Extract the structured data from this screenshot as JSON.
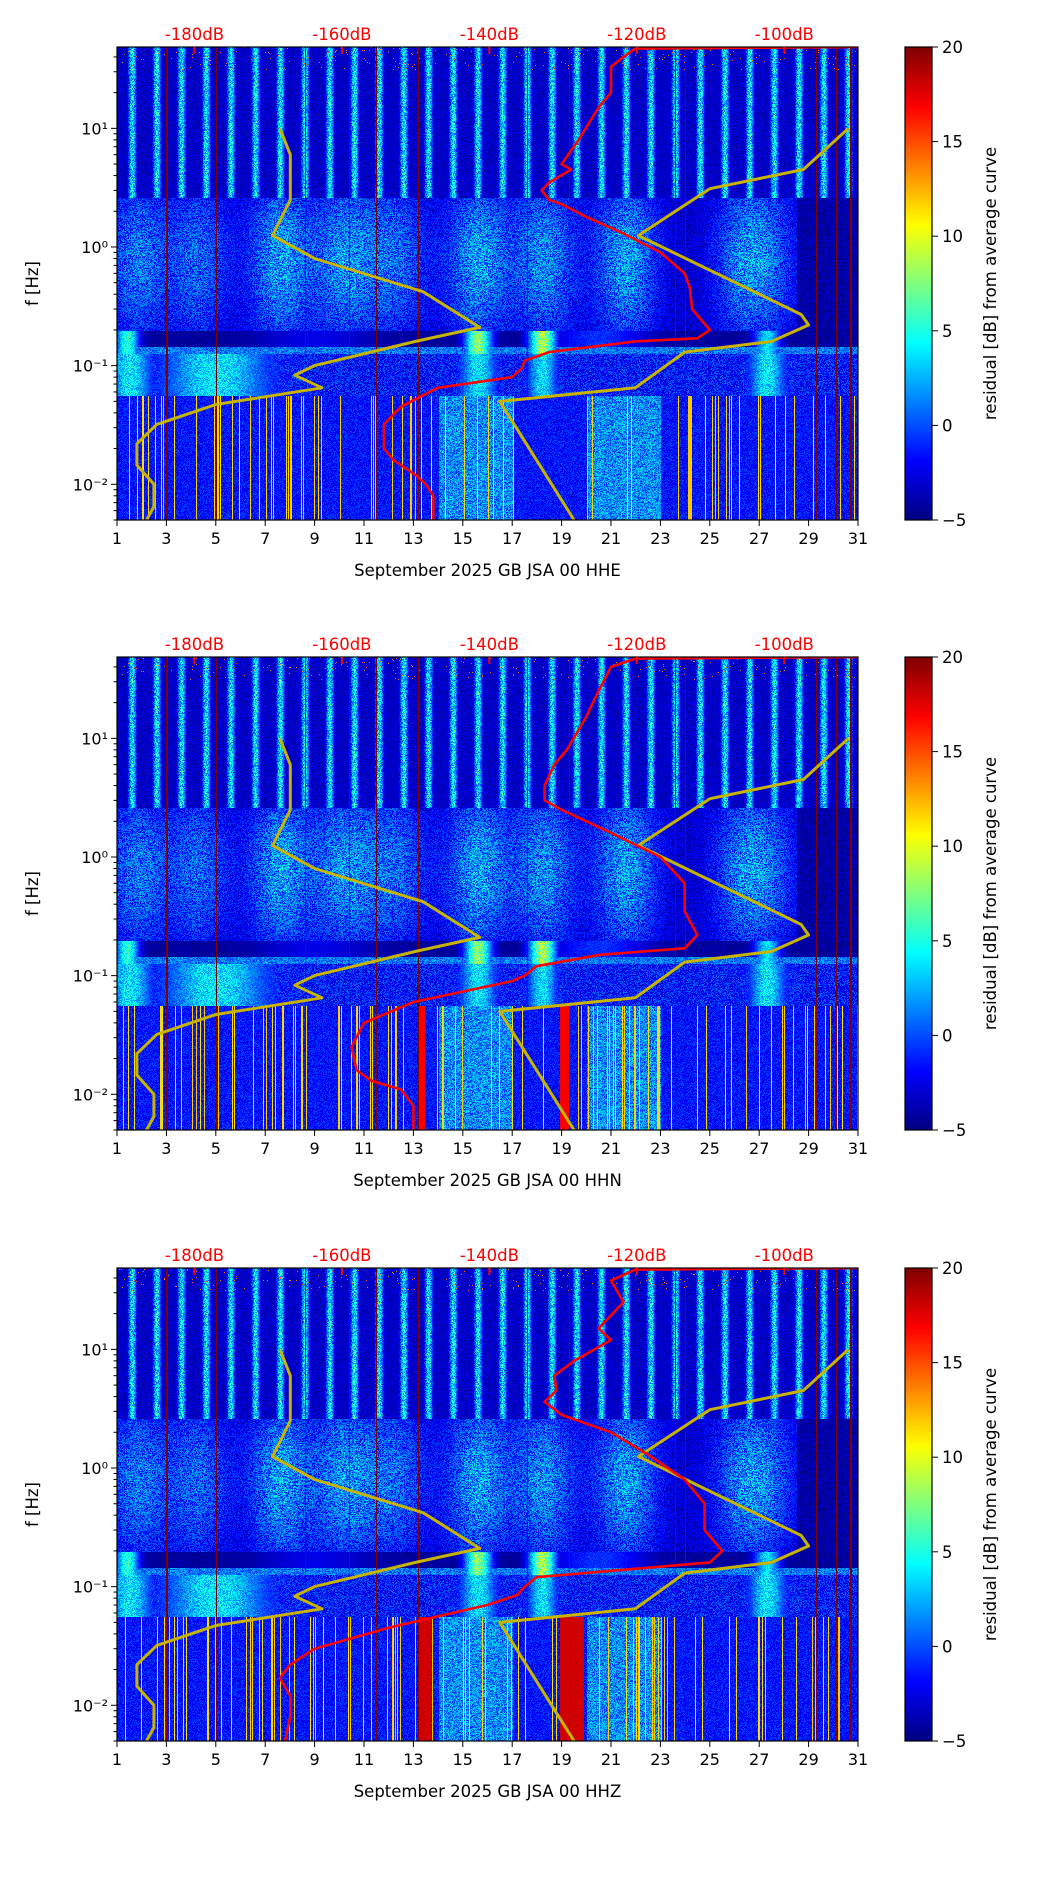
{
  "chart_data": {
    "type": "heatmap",
    "colormap": "jet",
    "x_ticks": [
      1,
      3,
      5,
      7,
      9,
      11,
      13,
      15,
      17,
      19,
      21,
      23,
      25,
      27,
      29,
      31
    ],
    "x_tick_labels": [
      "1",
      "3",
      "5",
      "7",
      "9",
      "11",
      "13",
      "15",
      "17",
      "19",
      "21",
      "23",
      "25",
      "27",
      "29",
      "31"
    ],
    "xlim_days": [
      1,
      31
    ],
    "ylabel": "f [Hz]",
    "yscale": "log",
    "ylim_hz": [
      0.005,
      48.5
    ],
    "y_ticks": [
      0.01,
      0.1,
      1,
      10
    ],
    "y_tick_labels": [
      "10⁻²",
      "10⁻¹",
      "10⁰",
      "10¹"
    ],
    "top_axis": {
      "xlim_db": [
        -190.5,
        -90
      ],
      "ticks": [
        -180,
        -160,
        -140,
        -120,
        -100
      ],
      "tick_labels": [
        "-180dB",
        "-160dB",
        "-140dB",
        "-120dB",
        "-100dB"
      ],
      "color": "#ff0000"
    },
    "colorbar": {
      "label": "residual [dB] from average curve",
      "range": [
        -5,
        20
      ],
      "ticks": [
        -5,
        0,
        5,
        10,
        15,
        20
      ],
      "tick_labels": [
        "−5",
        "0",
        "5",
        "10",
        "15",
        "20"
      ]
    },
    "noise_models": {
      "color": "#c8b400",
      "nlnm": [
        [
          10,
          -168.4
        ],
        [
          6,
          -167.0
        ],
        [
          2.5,
          -167.0
        ],
        [
          1.25,
          -169.4
        ],
        [
          0.8,
          -163.7
        ],
        [
          0.42,
          -149.0
        ],
        [
          0.21,
          -141.3
        ],
        [
          0.16,
          -150.0
        ],
        [
          0.1,
          -163.7
        ],
        [
          0.083,
          -166.4
        ],
        [
          0.065,
          -162.7
        ],
        [
          0.047,
          -177.1
        ],
        [
          0.032,
          -185.1
        ],
        [
          0.022,
          -187.8
        ],
        [
          0.0145,
          -187.8
        ],
        [
          0.01,
          -185.5
        ],
        [
          0.0065,
          -185.5
        ],
        [
          0.005,
          -186.5
        ]
      ],
      "nhnm": [
        [
          10,
          -91.3
        ],
        [
          4.5,
          -97.4
        ],
        [
          3.1,
          -110.1
        ],
        [
          1.25,
          -119.8
        ],
        [
          0.27,
          -97.7
        ],
        [
          0.22,
          -96.7
        ],
        [
          0.16,
          -101.7
        ],
        [
          0.13,
          -113.5
        ],
        [
          0.065,
          -120.2
        ],
        [
          0.05,
          -138.6
        ],
        [
          0.005,
          -128.5
        ]
      ]
    },
    "panels": [
      {
        "xlabel": "September 2025 GB JSA 00 HHE",
        "channel": "HHE",
        "average_curve_color": "#ff0000",
        "average_curve": [
          [
            48.5,
            -90
          ],
          [
            47,
            -120.2
          ],
          [
            40,
            -121.8
          ],
          [
            33,
            -123.5
          ],
          [
            20,
            -123.5
          ],
          [
            15,
            -125.2
          ],
          [
            8,
            -127.9
          ],
          [
            5,
            -130.2
          ],
          [
            4.5,
            -128.9
          ],
          [
            3.5,
            -131.9
          ],
          [
            3,
            -132.9
          ],
          [
            2.5,
            -131.9
          ],
          [
            2.3,
            -130.2
          ],
          [
            1.8,
            -126.9
          ],
          [
            1.3,
            -121.8
          ],
          [
            0.9,
            -116.8
          ],
          [
            0.6,
            -113.5
          ],
          [
            0.45,
            -112.8
          ],
          [
            0.3,
            -112.5
          ],
          [
            0.2,
            -110.1
          ],
          [
            0.17,
            -111.8
          ],
          [
            0.16,
            -120.2
          ],
          [
            0.13,
            -131.9
          ],
          [
            0.11,
            -135.2
          ],
          [
            0.095,
            -135.6
          ],
          [
            0.08,
            -136.9
          ],
          [
            0.065,
            -147
          ],
          [
            0.045,
            -152
          ],
          [
            0.032,
            -154.3
          ],
          [
            0.02,
            -154.3
          ],
          [
            0.016,
            -153
          ],
          [
            0.012,
            -150
          ],
          [
            0.01,
            -148.6
          ],
          [
            0.008,
            -147.6
          ],
          [
            0.005,
            -147.6
          ]
        ]
      },
      {
        "xlabel": "September 2025 GB JSA 00 HHN",
        "channel": "HHN",
        "average_curve_color": "#ff0000",
        "average_curve": [
          [
            48.5,
            -90
          ],
          [
            47,
            -120.2
          ],
          [
            40,
            -123.5
          ],
          [
            25,
            -125.2
          ],
          [
            15,
            -126.9
          ],
          [
            8,
            -129.5
          ],
          [
            6,
            -131.2
          ],
          [
            4,
            -132.5
          ],
          [
            3,
            -132.5
          ],
          [
            2.5,
            -130.2
          ],
          [
            1.6,
            -123.5
          ],
          [
            1.0,
            -116.8
          ],
          [
            0.6,
            -113.5
          ],
          [
            0.35,
            -113.5
          ],
          [
            0.22,
            -111.8
          ],
          [
            0.17,
            -113.5
          ],
          [
            0.15,
            -125
          ],
          [
            0.12,
            -133.6
          ],
          [
            0.1,
            -135.2
          ],
          [
            0.09,
            -136.9
          ],
          [
            0.06,
            -150.3
          ],
          [
            0.04,
            -157
          ],
          [
            0.025,
            -158.7
          ],
          [
            0.016,
            -158
          ],
          [
            0.013,
            -156
          ],
          [
            0.011,
            -152
          ],
          [
            0.008,
            -150.3
          ],
          [
            0.005,
            -150.3
          ]
        ]
      },
      {
        "xlabel": "September 2025 GB JSA 00 HHZ",
        "channel": "HHZ",
        "average_curve_color": "#ff0000",
        "average_curve": [
          [
            48.5,
            -90
          ],
          [
            47,
            -120.2
          ],
          [
            38,
            -123.5
          ],
          [
            25,
            -121.8
          ],
          [
            15,
            -125.2
          ],
          [
            12,
            -123.5
          ],
          [
            8,
            -128.5
          ],
          [
            6,
            -131.2
          ],
          [
            4.5,
            -130.9
          ],
          [
            3.6,
            -132.5
          ],
          [
            2.8,
            -130.2
          ],
          [
            2,
            -123.5
          ],
          [
            1.3,
            -118.5
          ],
          [
            0.8,
            -113.5
          ],
          [
            0.5,
            -110.8
          ],
          [
            0.3,
            -110.8
          ],
          [
            0.2,
            -108.4
          ],
          [
            0.16,
            -110.1
          ],
          [
            0.12,
            -133.6
          ],
          [
            0.1,
            -135.2
          ],
          [
            0.085,
            -136.2
          ],
          [
            0.07,
            -140.3
          ],
          [
            0.045,
            -153.7
          ],
          [
            0.03,
            -163.7
          ],
          [
            0.022,
            -167.0
          ],
          [
            0.017,
            -168.4
          ],
          [
            0.012,
            -167.0
          ],
          [
            0.008,
            -167.0
          ],
          [
            0.005,
            -167.7
          ]
        ]
      }
    ]
  }
}
